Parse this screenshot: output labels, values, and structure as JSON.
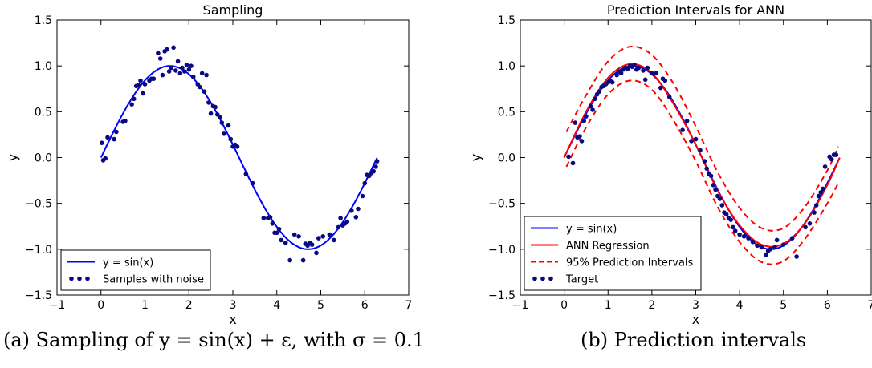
{
  "captions": {
    "a": "(a) Sampling of y = sin(x) + ε, with σ = 0.1",
    "b": "(b) Prediction intervals"
  },
  "chart_data": [
    {
      "type": "scatter",
      "title": "Sampling",
      "xlabel": "x",
      "ylabel": "y",
      "xlim": [
        -1,
        7
      ],
      "ylim": [
        -1.5,
        1.5
      ],
      "xticks": [
        -1,
        0,
        1,
        2,
        3,
        4,
        5,
        6,
        7
      ],
      "yticks": [
        -1.5,
        -1.0,
        -0.5,
        0.0,
        0.5,
        1.0,
        1.5
      ],
      "xtick_labels": [
        "−1",
        "0",
        "1",
        "2",
        "3",
        "4",
        "5",
        "6",
        "7"
      ],
      "ytick_labels": [
        "−1.5",
        "−1.0",
        "−0.5",
        "0.0",
        "0.5",
        "1.0",
        "1.5"
      ],
      "grid": false,
      "legend_position": "lower-left",
      "series": [
        {
          "name": "y = sin(x)",
          "kind": "line",
          "function": "sin",
          "x_range": [
            0,
            6.28
          ],
          "color": "#0000ff"
        },
        {
          "name": "Samples with noise",
          "kind": "scatter",
          "color": "#0a0a80",
          "points": [
            [
              0.02,
              0.16
            ],
            [
              0.05,
              -0.03
            ],
            [
              0.1,
              -0.01
            ],
            [
              0.15,
              0.22
            ],
            [
              0.3,
              0.2
            ],
            [
              0.35,
              0.28
            ],
            [
              0.5,
              0.39
            ],
            [
              0.55,
              0.4
            ],
            [
              0.7,
              0.58
            ],
            [
              0.75,
              0.64
            ],
            [
              0.8,
              0.78
            ],
            [
              0.85,
              0.79
            ],
            [
              0.9,
              0.84
            ],
            [
              0.95,
              0.7
            ],
            [
              1.0,
              0.8
            ],
            [
              1.1,
              0.84
            ],
            [
              1.15,
              0.86
            ],
            [
              1.2,
              0.86
            ],
            [
              1.3,
              1.14
            ],
            [
              1.35,
              1.08
            ],
            [
              1.4,
              0.9
            ],
            [
              1.45,
              1.16
            ],
            [
              1.5,
              1.18
            ],
            [
              1.55,
              0.94
            ],
            [
              1.6,
              0.98
            ],
            [
              1.65,
              1.2
            ],
            [
              1.7,
              0.95
            ],
            [
              1.75,
              1.05
            ],
            [
              1.8,
              0.92
            ],
            [
              1.85,
              0.98
            ],
            [
              1.9,
              0.94
            ],
            [
              1.95,
              1.01
            ],
            [
              2.0,
              0.96
            ],
            [
              2.05,
              1.0
            ],
            [
              2.1,
              0.88
            ],
            [
              2.2,
              0.8
            ],
            [
              2.25,
              0.77
            ],
            [
              2.3,
              0.92
            ],
            [
              2.35,
              0.72
            ],
            [
              2.4,
              0.9
            ],
            [
              2.45,
              0.6
            ],
            [
              2.5,
              0.48
            ],
            [
              2.55,
              0.56
            ],
            [
              2.6,
              0.55
            ],
            [
              2.65,
              0.47
            ],
            [
              2.7,
              0.44
            ],
            [
              2.75,
              0.38
            ],
            [
              2.8,
              0.26
            ],
            [
              2.9,
              0.35
            ],
            [
              2.95,
              0.2
            ],
            [
              3.0,
              0.12
            ],
            [
              3.05,
              0.14
            ],
            [
              3.1,
              0.12
            ],
            [
              3.3,
              -0.18
            ],
            [
              3.45,
              -0.28
            ],
            [
              3.7,
              -0.66
            ],
            [
              3.8,
              -0.66
            ],
            [
              3.85,
              -0.65
            ],
            [
              3.9,
              -0.72
            ],
            [
              3.95,
              -0.82
            ],
            [
              4.0,
              -0.82
            ],
            [
              4.05,
              -0.78
            ],
            [
              4.1,
              -0.9
            ],
            [
              4.2,
              -0.93
            ],
            [
              4.3,
              -1.12
            ],
            [
              4.4,
              -0.84
            ],
            [
              4.5,
              -0.86
            ],
            [
              4.6,
              -1.12
            ],
            [
              4.65,
              -0.94
            ],
            [
              4.7,
              -0.96
            ],
            [
              4.75,
              -0.93
            ],
            [
              4.8,
              -0.95
            ],
            [
              4.9,
              -1.04
            ],
            [
              4.95,
              -0.88
            ],
            [
              5.05,
              -0.86
            ],
            [
              5.2,
              -0.84
            ],
            [
              5.3,
              -0.9
            ],
            [
              5.4,
              -0.76
            ],
            [
              5.45,
              -0.66
            ],
            [
              5.5,
              -0.74
            ],
            [
              5.55,
              -0.72
            ],
            [
              5.6,
              -0.7
            ],
            [
              5.7,
              -0.58
            ],
            [
              5.8,
              -0.65
            ],
            [
              5.85,
              -0.56
            ],
            [
              5.95,
              -0.42
            ],
            [
              6.0,
              -0.28
            ],
            [
              6.05,
              -0.19
            ],
            [
              6.1,
              -0.2
            ],
            [
              6.15,
              -0.17
            ],
            [
              6.2,
              -0.15
            ],
            [
              6.25,
              -0.1
            ],
            [
              6.28,
              -0.04
            ]
          ]
        }
      ]
    },
    {
      "type": "line",
      "title": "Prediction Intervals for ANN",
      "xlabel": "x",
      "ylabel": "y",
      "xlim": [
        -1,
        7
      ],
      "ylim": [
        -1.5,
        1.5
      ],
      "xticks": [
        -1,
        0,
        1,
        2,
        3,
        4,
        5,
        6,
        7
      ],
      "yticks": [
        -1.5,
        -1.0,
        -0.5,
        0.0,
        0.5,
        1.0,
        1.5
      ],
      "xtick_labels": [
        "−1",
        "0",
        "1",
        "2",
        "3",
        "4",
        "5",
        "6",
        "7"
      ],
      "ytick_labels": [
        "−1.5",
        "−1.0",
        "−0.5",
        "0.0",
        "0.5",
        "1.0",
        "1.5"
      ],
      "grid": false,
      "legend_position": "lower-left",
      "series": [
        {
          "name": "y = sin(x)",
          "kind": "line",
          "function": "sin",
          "x_range": [
            0,
            6.28
          ],
          "color": "#0000ff"
        },
        {
          "name": "ANN Regression",
          "kind": "line",
          "color": "#ff0000",
          "points": [
            [
              0.0,
              0.0
            ],
            [
              0.5,
              0.5
            ],
            [
              1.0,
              0.87
            ],
            [
              1.5,
              1.02
            ],
            [
              2.0,
              0.92
            ],
            [
              2.5,
              0.58
            ],
            [
              3.0,
              0.14
            ],
            [
              3.5,
              -0.36
            ],
            [
              4.0,
              -0.74
            ],
            [
              4.5,
              -0.95
            ],
            [
              5.0,
              -0.94
            ],
            [
              5.5,
              -0.71
            ],
            [
              6.0,
              -0.3
            ],
            [
              6.28,
              0.0
            ]
          ]
        },
        {
          "name": "95% Prediction Intervals",
          "kind": "line",
          "dash": true,
          "color": "#ff0000",
          "bands": [
            [
              [
                0.05,
                0.28
              ],
              [
                0.5,
                0.68
              ],
              [
                1.0,
                1.05
              ],
              [
                1.5,
                1.21
              ],
              [
                2.0,
                1.12
              ],
              [
                2.5,
                0.8
              ],
              [
                3.0,
                0.34
              ],
              [
                3.5,
                -0.16
              ],
              [
                4.0,
                -0.55
              ],
              [
                4.5,
                -0.77
              ],
              [
                5.0,
                -0.77
              ],
              [
                5.5,
                -0.53
              ],
              [
                6.0,
                -0.14
              ],
              [
                6.25,
                0.12
              ]
            ],
            [
              [
                0.05,
                -0.1
              ],
              [
                0.5,
                0.33
              ],
              [
                1.0,
                0.69
              ],
              [
                1.5,
                0.84
              ],
              [
                2.0,
                0.74
              ],
              [
                2.5,
                0.4
              ],
              [
                3.0,
                -0.04
              ],
              [
                3.5,
                -0.54
              ],
              [
                4.0,
                -0.92
              ],
              [
                4.5,
                -1.14
              ],
              [
                5.0,
                -1.13
              ],
              [
                5.5,
                -0.88
              ],
              [
                6.0,
                -0.5
              ],
              [
                6.25,
                -0.28
              ]
            ]
          ]
        },
        {
          "name": "Target",
          "kind": "scatter",
          "color": "#0a0a80",
          "points": [
            [
              0.1,
              0.01
            ],
            [
              0.2,
              -0.06
            ],
            [
              0.25,
              0.38
            ],
            [
              0.3,
              0.22
            ],
            [
              0.35,
              0.23
            ],
            [
              0.4,
              0.18
            ],
            [
              0.45,
              0.4
            ],
            [
              0.5,
              0.45
            ],
            [
              0.6,
              0.56
            ],
            [
              0.65,
              0.52
            ],
            [
              0.7,
              0.64
            ],
            [
              0.75,
              0.69
            ],
            [
              0.8,
              0.72
            ],
            [
              0.85,
              0.77
            ],
            [
              0.9,
              0.78
            ],
            [
              0.95,
              0.8
            ],
            [
              1.0,
              0.82
            ],
            [
              1.05,
              0.84
            ],
            [
              1.1,
              0.82
            ],
            [
              1.2,
              0.9
            ],
            [
              1.25,
              0.94
            ],
            [
              1.3,
              0.92
            ],
            [
              1.35,
              0.96
            ],
            [
              1.4,
              0.98
            ],
            [
              1.45,
              0.97
            ],
            [
              1.5,
              1.0
            ],
            [
              1.55,
              0.99
            ],
            [
              1.6,
              1.01
            ],
            [
              1.65,
              0.96
            ],
            [
              1.7,
              0.98
            ],
            [
              1.8,
              0.95
            ],
            [
              1.85,
              0.85
            ],
            [
              1.9,
              0.98
            ],
            [
              2.0,
              0.92
            ],
            [
              2.1,
              0.92
            ],
            [
              2.2,
              0.76
            ],
            [
              2.25,
              0.86
            ],
            [
              2.3,
              0.84
            ],
            [
              2.4,
              0.66
            ],
            [
              2.7,
              0.3
            ],
            [
              2.8,
              0.4
            ],
            [
              2.9,
              0.18
            ],
            [
              3.0,
              0.2
            ],
            [
              3.1,
              0.08
            ],
            [
              3.2,
              -0.04
            ],
            [
              3.25,
              -0.12
            ],
            [
              3.3,
              -0.18
            ],
            [
              3.35,
              -0.2
            ],
            [
              3.4,
              -0.3
            ],
            [
              3.45,
              -0.35
            ],
            [
              3.5,
              -0.42
            ],
            [
              3.55,
              -0.45
            ],
            [
              3.6,
              -0.52
            ],
            [
              3.65,
              -0.6
            ],
            [
              3.7,
              -0.62
            ],
            [
              3.75,
              -0.66
            ],
            [
              3.8,
              -0.68
            ],
            [
              3.85,
              -0.76
            ],
            [
              3.9,
              -0.8
            ],
            [
              4.0,
              -0.84
            ],
            [
              4.1,
              -0.86
            ],
            [
              4.2,
              -0.88
            ],
            [
              4.3,
              -0.92
            ],
            [
              4.4,
              -0.96
            ],
            [
              4.5,
              -0.98
            ],
            [
              4.6,
              -1.06
            ],
            [
              4.65,
              -1.02
            ],
            [
              4.7,
              -1.0
            ],
            [
              4.8,
              -0.98
            ],
            [
              4.85,
              -0.9
            ],
            [
              5.0,
              -0.95
            ],
            [
              5.2,
              -0.88
            ],
            [
              5.3,
              -1.08
            ],
            [
              5.5,
              -0.76
            ],
            [
              5.6,
              -0.72
            ],
            [
              5.7,
              -0.6
            ],
            [
              5.75,
              -0.52
            ],
            [
              5.8,
              -0.42
            ],
            [
              5.85,
              -0.38
            ],
            [
              5.9,
              -0.34
            ],
            [
              5.95,
              -0.1
            ],
            [
              6.05,
              0.01
            ],
            [
              6.1,
              -0.02
            ],
            [
              6.15,
              0.03
            ],
            [
              6.2,
              0.03
            ]
          ]
        }
      ]
    }
  ]
}
